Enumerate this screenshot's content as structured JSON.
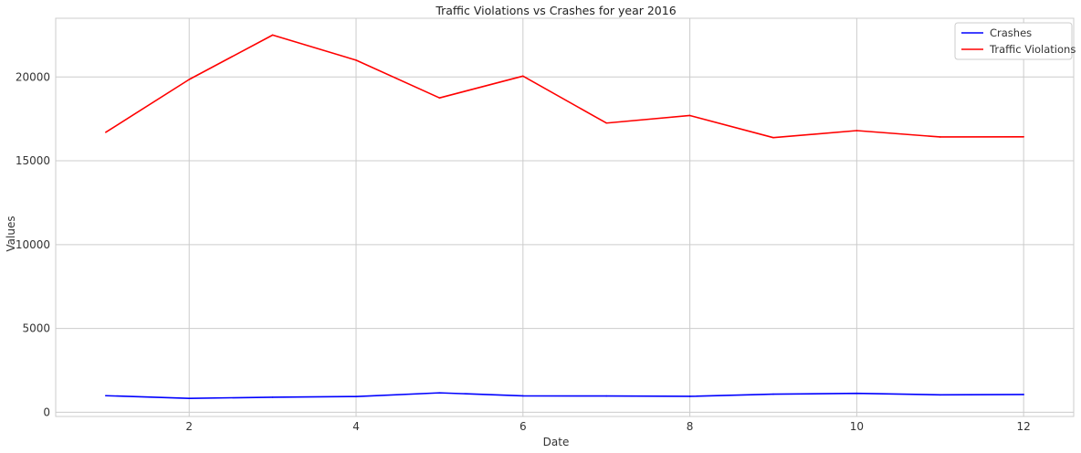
{
  "chart_data": {
    "type": "line",
    "title": "Traffic Violations vs Crashes for year 2016",
    "xlabel": "Date",
    "ylabel": "Values",
    "xlim": [
      0.4,
      12.6
    ],
    "ylim": [
      -250,
      23500
    ],
    "x_ticks": [
      2,
      4,
      6,
      8,
      10,
      12
    ],
    "y_ticks": [
      0,
      5000,
      10000,
      15000,
      20000
    ],
    "grid": true,
    "legend_position": "top-right",
    "x": [
      1,
      2,
      3,
      4,
      5,
      6,
      7,
      8,
      9,
      10,
      11,
      12
    ],
    "series": [
      {
        "name": "Crashes",
        "color": "#0000ff",
        "values": [
          990,
          830,
          900,
          940,
          1160,
          980,
          970,
          950,
          1080,
          1130,
          1040,
          1060
        ]
      },
      {
        "name": "Traffic Violations",
        "color": "#ff0000",
        "values": [
          16700,
          19850,
          22500,
          21000,
          18750,
          20050,
          17250,
          17700,
          16380,
          16800,
          16420,
          16430
        ]
      }
    ]
  }
}
